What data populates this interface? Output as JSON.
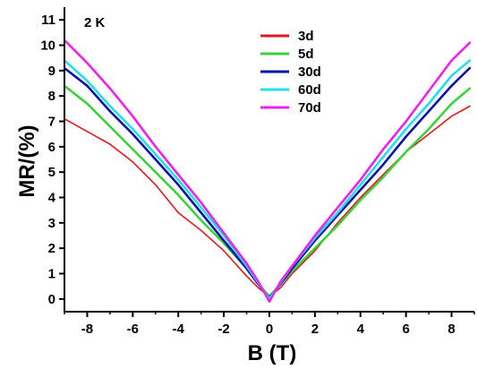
{
  "chart_data": {
    "type": "line",
    "title": "",
    "xlabel": "B (T)",
    "ylabel": "MR/(%)",
    "annotation": "2 K",
    "xlim": [
      -9,
      9
    ],
    "ylim": [
      -0.5,
      11.5
    ],
    "xticks": [
      -8,
      -6,
      -4,
      -2,
      0,
      2,
      4,
      6,
      8
    ],
    "yticks": [
      0,
      1,
      2,
      3,
      4,
      5,
      6,
      7,
      8,
      9,
      10,
      11
    ],
    "legend_position": "top-center",
    "grid": false,
    "series": [
      {
        "name": "3d",
        "color": "#e31a1c",
        "x": [
          -9,
          -8,
          -7,
          -6,
          -5,
          -4,
          -3,
          -2,
          -1,
          -0.5,
          0,
          0.5,
          1,
          2,
          3,
          4,
          5,
          6,
          7,
          8,
          8.8
        ],
        "y": [
          7.1,
          6.6,
          6.1,
          5.4,
          4.5,
          3.4,
          2.7,
          1.9,
          0.9,
          0.45,
          0.1,
          0.45,
          1.0,
          1.9,
          3.0,
          4.0,
          4.9,
          5.8,
          6.5,
          7.2,
          7.6
        ]
      },
      {
        "name": "5d",
        "color": "#3ed13e",
        "x": [
          -9,
          -8,
          -7,
          -6,
          -5,
          -4,
          -3,
          -2,
          -1,
          -0.5,
          0,
          0.5,
          1,
          2,
          3,
          4,
          5,
          6,
          7,
          8,
          8.8
        ],
        "y": [
          8.4,
          7.7,
          6.8,
          5.9,
          5.0,
          4.1,
          3.1,
          2.2,
          1.2,
          0.6,
          0.1,
          0.6,
          1.1,
          2.0,
          2.9,
          3.9,
          4.8,
          5.8,
          6.7,
          7.7,
          8.3
        ]
      },
      {
        "name": "30d",
        "color": "#0a14a8",
        "x": [
          -9,
          -8,
          -7,
          -6,
          -5,
          -4,
          -3,
          -2,
          -1,
          -0.5,
          0,
          0.5,
          1,
          2,
          3,
          4,
          5,
          6,
          7,
          8,
          8.8
        ],
        "y": [
          9.1,
          8.4,
          7.4,
          6.5,
          5.5,
          4.5,
          3.4,
          2.3,
          1.2,
          0.6,
          0.05,
          0.6,
          1.2,
          2.3,
          3.3,
          4.3,
          5.3,
          6.4,
          7.4,
          8.4,
          9.1
        ]
      },
      {
        "name": "60d",
        "color": "#22e0e8",
        "x": [
          -9,
          -8,
          -7,
          -6,
          -5,
          -4,
          -3,
          -2,
          -1,
          -0.5,
          0,
          0.5,
          1,
          2,
          3,
          4,
          5,
          6,
          7,
          8,
          8.8
        ],
        "y": [
          9.4,
          8.6,
          7.6,
          6.7,
          5.7,
          4.7,
          3.6,
          2.5,
          1.3,
          0.65,
          0.0,
          0.65,
          1.3,
          2.4,
          3.4,
          4.5,
          5.6,
          6.7,
          7.7,
          8.8,
          9.4
        ]
      },
      {
        "name": "70d",
        "color": "#ee22ee",
        "x": [
          -9,
          -8,
          -7,
          -6,
          -5,
          -4,
          -3,
          -2,
          -1,
          -0.5,
          0,
          0.5,
          1,
          2,
          3,
          4,
          5,
          6,
          7,
          8,
          8.8
        ],
        "y": [
          10.2,
          9.3,
          8.3,
          7.2,
          6.0,
          4.9,
          3.8,
          2.6,
          1.4,
          0.7,
          -0.1,
          0.7,
          1.3,
          2.5,
          3.6,
          4.7,
          5.9,
          7.0,
          8.2,
          9.4,
          10.1
        ]
      }
    ]
  }
}
